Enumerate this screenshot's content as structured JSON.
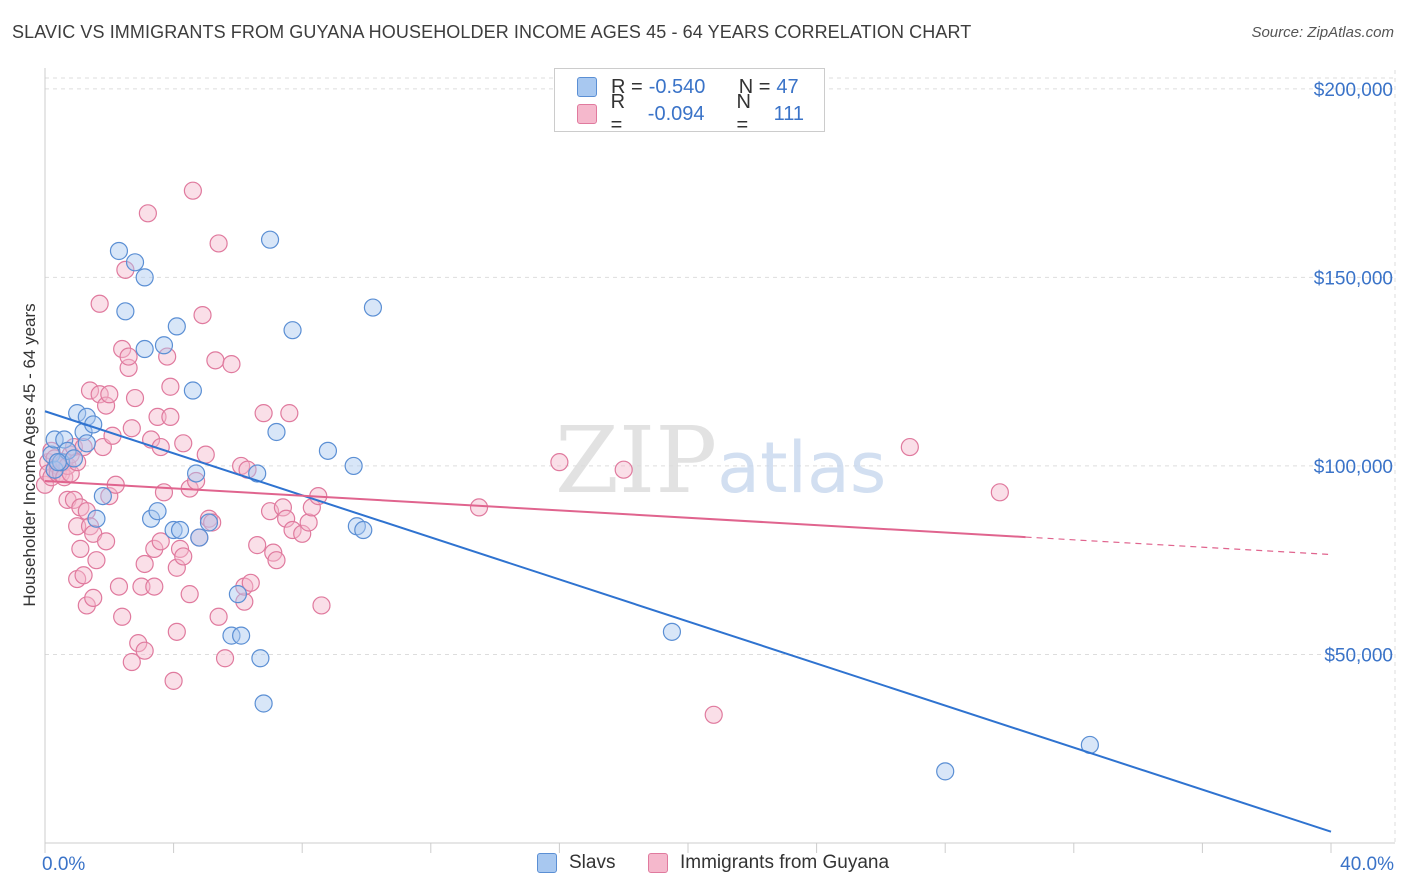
{
  "title": "SLAVIC VS IMMIGRANTS FROM GUYANA HOUSEHOLDER INCOME AGES 45 - 64 YEARS CORRELATION CHART",
  "source": "Source: ZipAtlas.com",
  "legend": {
    "r_label": "R =",
    "n_label": "N =",
    "series": [
      {
        "name": "Slavs",
        "r": "-0.540",
        "n": "47",
        "fill": "#a8c8f0",
        "stroke": "#5b8fd4"
      },
      {
        "name": "Immigrants from Guyana",
        "r": "-0.094",
        "n": "111",
        "fill": "#f5b8cc",
        "stroke": "#e07a9e"
      }
    ]
  },
  "colors": {
    "blue_line": "#2f73d0",
    "pink_line": "#e0648e",
    "axis_label": "#3a73c8",
    "grid": "#dddddd"
  },
  "chart_data": {
    "type": "scatter",
    "xlabel": "",
    "ylabel": "Householder Income Ages 45 - 64 years",
    "x_tick_labels": [
      "0.0%",
      "40.0%"
    ],
    "y_tick_labels": [
      "$50,000",
      "$100,000",
      "$150,000",
      "$200,000"
    ],
    "y_ticks": [
      50000,
      100000,
      150000,
      200000
    ],
    "xlim": [
      0,
      40
    ],
    "ylim": [
      0,
      205000
    ],
    "watermark": "ZIPatlas",
    "series": [
      {
        "name": "Slavs",
        "trend": {
          "x0": 0,
          "y0": 114500,
          "x1": 40,
          "y1": 3000,
          "solid_to": 40
        },
        "points": [
          [
            0.2,
            103000
          ],
          [
            0.3,
            99000
          ],
          [
            0.3,
            107000
          ],
          [
            0.5,
            101000
          ],
          [
            0.6,
            107000
          ],
          [
            0.7,
            104000
          ],
          [
            0.9,
            102000
          ],
          [
            1.0,
            114000
          ],
          [
            1.2,
            109000
          ],
          [
            1.3,
            106000
          ],
          [
            1.3,
            113000
          ],
          [
            1.5,
            111000
          ],
          [
            1.6,
            86000
          ],
          [
            1.8,
            92000
          ],
          [
            2.3,
            157000
          ],
          [
            2.5,
            141000
          ],
          [
            2.8,
            154000
          ],
          [
            3.1,
            150000
          ],
          [
            3.1,
            131000
          ],
          [
            3.3,
            86000
          ],
          [
            3.5,
            88000
          ],
          [
            3.7,
            132000
          ],
          [
            4.0,
            83000
          ],
          [
            4.1,
            137000
          ],
          [
            4.2,
            83000
          ],
          [
            4.6,
            120000
          ],
          [
            4.7,
            98000
          ],
          [
            4.8,
            81000
          ],
          [
            5.1,
            85000
          ],
          [
            5.8,
            55000
          ],
          [
            6.0,
            66000
          ],
          [
            6.1,
            55000
          ],
          [
            6.6,
            98000
          ],
          [
            6.7,
            49000
          ],
          [
            6.8,
            37000
          ],
          [
            7.0,
            160000
          ],
          [
            7.2,
            109000
          ],
          [
            7.7,
            136000
          ],
          [
            8.8,
            104000
          ],
          [
            9.6,
            100000
          ],
          [
            9.7,
            84000
          ],
          [
            9.9,
            83000
          ],
          [
            10.2,
            142000
          ],
          [
            19.5,
            56000
          ],
          [
            28.0,
            19000
          ],
          [
            32.5,
            26000
          ],
          [
            0.4,
            101000
          ]
        ]
      },
      {
        "name": "Immigrants from Guyana",
        "trend": {
          "x0": 0,
          "y0": 96000,
          "x1": 40,
          "y1": 76500,
          "solid_to": 30.5
        },
        "points": [
          [
            0.0,
            95000
          ],
          [
            0.1,
            101000
          ],
          [
            0.1,
            98000
          ],
          [
            0.2,
            97000
          ],
          [
            0.2,
            104000
          ],
          [
            0.3,
            99000
          ],
          [
            0.3,
            102000
          ],
          [
            0.4,
            100000
          ],
          [
            0.4,
            98000
          ],
          [
            0.5,
            101000
          ],
          [
            0.5,
            98000
          ],
          [
            0.6,
            97000
          ],
          [
            0.6,
            101000
          ],
          [
            0.7,
            100000
          ],
          [
            0.7,
            91000
          ],
          [
            0.8,
            98000
          ],
          [
            0.8,
            103000
          ],
          [
            0.9,
            91000
          ],
          [
            0.9,
            105000
          ],
          [
            1.0,
            70000
          ],
          [
            1.0,
            84000
          ],
          [
            1.0,
            101000
          ],
          [
            1.1,
            78000
          ],
          [
            1.1,
            89000
          ],
          [
            1.2,
            105000
          ],
          [
            1.2,
            71000
          ],
          [
            1.3,
            63000
          ],
          [
            1.3,
            88000
          ],
          [
            1.4,
            120000
          ],
          [
            1.4,
            84000
          ],
          [
            1.5,
            65000
          ],
          [
            1.5,
            82000
          ],
          [
            1.6,
            75000
          ],
          [
            1.7,
            119000
          ],
          [
            1.7,
            143000
          ],
          [
            1.8,
            105000
          ],
          [
            1.9,
            116000
          ],
          [
            1.9,
            80000
          ],
          [
            2.0,
            92000
          ],
          [
            2.0,
            119000
          ],
          [
            2.1,
            108000
          ],
          [
            2.2,
            95000
          ],
          [
            2.3,
            68000
          ],
          [
            2.4,
            60000
          ],
          [
            2.4,
            131000
          ],
          [
            2.5,
            152000
          ],
          [
            2.6,
            126000
          ],
          [
            2.6,
            129000
          ],
          [
            2.7,
            48000
          ],
          [
            2.7,
            110000
          ],
          [
            2.8,
            118000
          ],
          [
            2.9,
            53000
          ],
          [
            3.0,
            68000
          ],
          [
            3.1,
            51000
          ],
          [
            3.1,
            74000
          ],
          [
            3.2,
            167000
          ],
          [
            3.3,
            107000
          ],
          [
            3.4,
            78000
          ],
          [
            3.4,
            68000
          ],
          [
            3.5,
            113000
          ],
          [
            3.6,
            105000
          ],
          [
            3.6,
            80000
          ],
          [
            3.7,
            93000
          ],
          [
            3.8,
            129000
          ],
          [
            3.9,
            113000
          ],
          [
            3.9,
            121000
          ],
          [
            4.0,
            43000
          ],
          [
            4.1,
            73000
          ],
          [
            4.1,
            56000
          ],
          [
            4.2,
            78000
          ],
          [
            4.3,
            106000
          ],
          [
            4.3,
            76000
          ],
          [
            4.5,
            94000
          ],
          [
            4.5,
            66000
          ],
          [
            4.6,
            173000
          ],
          [
            4.7,
            96000
          ],
          [
            4.8,
            81000
          ],
          [
            4.9,
            140000
          ],
          [
            5.0,
            103000
          ],
          [
            5.1,
            86000
          ],
          [
            5.2,
            85000
          ],
          [
            5.3,
            128000
          ],
          [
            5.4,
            159000
          ],
          [
            5.4,
            60000
          ],
          [
            5.6,
            49000
          ],
          [
            5.8,
            127000
          ],
          [
            6.1,
            100000
          ],
          [
            6.2,
            64000
          ],
          [
            6.2,
            68000
          ],
          [
            6.3,
            99000
          ],
          [
            6.4,
            69000
          ],
          [
            6.6,
            79000
          ],
          [
            6.8,
            114000
          ],
          [
            7.0,
            88000
          ],
          [
            7.1,
            77000
          ],
          [
            7.2,
            75000
          ],
          [
            7.4,
            89000
          ],
          [
            7.5,
            86000
          ],
          [
            7.6,
            114000
          ],
          [
            7.7,
            83000
          ],
          [
            8.0,
            82000
          ],
          [
            8.2,
            85000
          ],
          [
            8.3,
            89000
          ],
          [
            8.5,
            92000
          ],
          [
            8.6,
            63000
          ],
          [
            13.5,
            89000
          ],
          [
            16.0,
            101000
          ],
          [
            18.0,
            99000
          ],
          [
            20.8,
            34000
          ],
          [
            26.9,
            105000
          ],
          [
            29.7,
            93000
          ]
        ]
      }
    ]
  }
}
